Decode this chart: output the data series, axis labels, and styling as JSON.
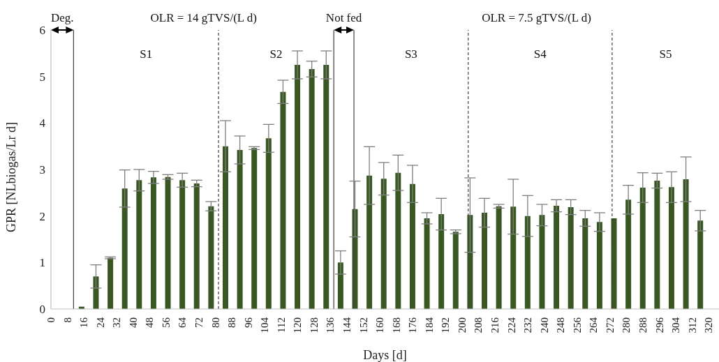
{
  "chart_data": {
    "type": "bar",
    "xlabel": "Days [d]",
    "ylabel": "GPR [NLbiogas/Lr d]",
    "x": [
      15,
      22,
      29,
      36,
      43,
      50,
      57,
      64,
      71,
      78,
      85,
      92,
      99,
      106,
      113,
      120,
      127,
      134,
      141,
      148,
      155,
      162,
      169,
      176,
      183,
      190,
      197,
      204,
      211,
      218,
      225,
      232,
      239,
      246,
      253,
      260,
      267,
      274,
      281,
      288,
      295,
      302,
      309,
      316
    ],
    "values": [
      0.05,
      0.7,
      1.1,
      2.59,
      2.77,
      2.83,
      2.84,
      2.77,
      2.7,
      2.21,
      3.5,
      3.42,
      3.46,
      3.67,
      4.67,
      5.25,
      5.16,
      5.25,
      1.0,
      2.15,
      2.87,
      2.8,
      2.93,
      2.69,
      1.95,
      2.04,
      1.66,
      2.02,
      2.07,
      2.21,
      2.2,
      2.0,
      2.02,
      2.22,
      2.19,
      1.95,
      1.87,
      1.95,
      2.35,
      2.61,
      2.76,
      2.62,
      2.79,
      1.9
    ],
    "errors": [
      null,
      0.25,
      0.02,
      0.4,
      0.23,
      0.13,
      0.05,
      0.15,
      0.07,
      0.1,
      0.55,
      0.3,
      0.03,
      0.3,
      0.25,
      0.3,
      0.17,
      0.3,
      0.25,
      0.6,
      0.62,
      0.35,
      0.38,
      0.4,
      0.12,
      0.34,
      0.04,
      0.8,
      0.31,
      0.04,
      0.59,
      0.44,
      0.23,
      0.13,
      0.16,
      0.17,
      0.2,
      null,
      0.31,
      0.32,
      0.16,
      0.33,
      0.48,
      0.22
    ],
    "color": "#385723",
    "xlim": [
      0,
      325
    ],
    "xticks": [
      0,
      8,
      16,
      24,
      32,
      40,
      48,
      56,
      64,
      72,
      80,
      88,
      96,
      104,
      112,
      120,
      128,
      136,
      144,
      152,
      160,
      168,
      176,
      184,
      192,
      200,
      208,
      216,
      224,
      232,
      240,
      248,
      256,
      264,
      272,
      280,
      288,
      296,
      304,
      312,
      320
    ],
    "ylim": [
      0,
      6
    ],
    "yticks": [
      0,
      1,
      2,
      3,
      4,
      5,
      6
    ],
    "grid": false,
    "ref_lines": [
      {
        "axis": "x",
        "value": 11,
        "line_style": "solid",
        "color": "#404040"
      },
      {
        "axis": "x",
        "value": 81.5,
        "line_style": "dashed",
        "color": "#404040"
      },
      {
        "axis": "x",
        "value": 137.6,
        "line_style": "solid",
        "color": "#404040"
      },
      {
        "axis": "x",
        "value": 147.4,
        "line_style": "solid",
        "color": "#404040"
      },
      {
        "axis": "x",
        "value": 203,
        "line_style": "dashed",
        "color": "#404040"
      },
      {
        "axis": "x",
        "value": 273,
        "line_style": "dashed",
        "color": "#404040"
      }
    ],
    "annotations": [
      "Deg.",
      "OLR = 14 gTVS/(L d)",
      "Not fed",
      "OLR = 7.5 gTVS/(L d)",
      "S1",
      "S2",
      "S3",
      "S4",
      "S5"
    ]
  }
}
